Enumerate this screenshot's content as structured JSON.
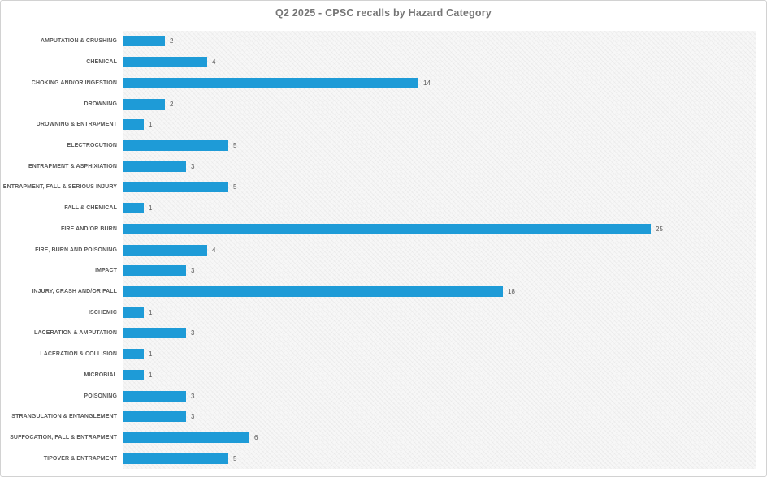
{
  "window": {
    "background": "#ffffff",
    "border_color": "#d2d2d2"
  },
  "colors": {
    "bar": "#1E9BD7",
    "title_text": "#767676",
    "category_label_text": "#595959",
    "value_label_text": "#595959",
    "axis_line": "#d6d6d6",
    "plot_background": "#f7f7f7"
  },
  "chart_data": {
    "type": "bar",
    "orientation": "horizontal",
    "title": "Q2 2025 - CPSC recalls by Hazard Category",
    "xlabel": "",
    "ylabel": "",
    "xlim": [
      0,
      30
    ],
    "grid": false,
    "legend": false,
    "data_labels": true,
    "categories": [
      "AMPUTATION & CRUSHING",
      "CHEMICAL",
      "CHOKING AND/OR INGESTION",
      "DROWNING",
      "DROWNING & ENTRAPMENT",
      "ELECTROCUTION",
      "ENTRAPMENT & ASPHIXIATION",
      "ENTRAPMENT, FALL & SERIOUS INJURY",
      "FALL & CHEMICAL",
      "FIRE AND/OR BURN",
      "FIRE, BURN AND POISONING",
      "IMPACT",
      "INJURY, CRASH AND/OR FALL",
      "ISCHEMIC",
      "LACERATION & AMPUTATION",
      "LACERATION & COLLISION",
      "MICROBIAL",
      "POISONING",
      "STRANGULATION & ENTANGLEMENT",
      "SUFFOCATION, FALL & ENTRAPMENT",
      "TIPOVER & ENTRAPMENT"
    ],
    "values": [
      2,
      4,
      14,
      2,
      1,
      5,
      3,
      5,
      1,
      25,
      4,
      3,
      18,
      1,
      3,
      1,
      1,
      3,
      3,
      6,
      5
    ]
  }
}
